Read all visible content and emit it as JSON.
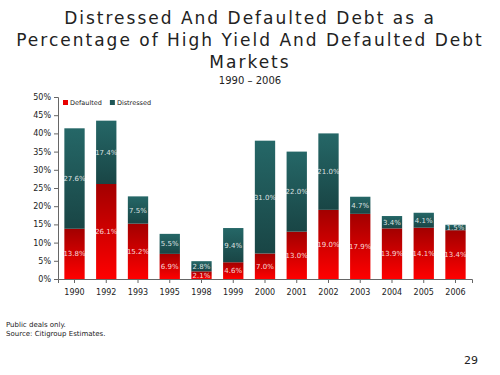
{
  "chart_data": {
    "type": "bar",
    "title": "Distressed And Defaulted Debt as a Percentage of High Yield And Defaulted Debt Markets",
    "subtitle": "1990 – 2006",
    "annotations": [
      "Public deals only.",
      "Source: Citigroup  Estimates.",
      "29"
    ],
    "categories": [
      "1990",
      "1992",
      "1993",
      "1995",
      "1998",
      "1999",
      "2000",
      "2001",
      "2002",
      "2003",
      "2004",
      "2005",
      "2006"
    ],
    "series": [
      {
        "name": "Defaulted",
        "color": "#e80000",
        "values": [
          13.8,
          26.1,
          15.2,
          6.9,
          2.1,
          4.6,
          7.0,
          13.0,
          19.0,
          17.9,
          13.9,
          14.1,
          13.4
        ],
        "value_labels": [
          "13.8%",
          "26.1%",
          "15.2%",
          "6.9%",
          "2.1%",
          "4.6%",
          "7.0%",
          "13.0%",
          "19.0%",
          "17.9%",
          "13.9%",
          "14.1%",
          "13.4%"
        ]
      },
      {
        "name": "Distressed",
        "color": "#1f5656",
        "values": [
          27.6,
          17.4,
          7.5,
          5.5,
          2.8,
          9.4,
          31.0,
          22.0,
          21.0,
          4.7,
          3.4,
          4.1,
          1.5
        ],
        "value_labels": [
          "27.6%",
          "17.4%",
          "7.5%",
          "5.5%",
          "2.8%",
          "9.4%",
          "31.0%",
          "22.0%",
          "21.0%",
          "4.7%",
          "3.4%",
          "4.1%",
          "1.5%"
        ]
      }
    ],
    "stacked": true,
    "data_labels": true,
    "legend": "top-left",
    "grid": false,
    "ylim": [
      0,
      50
    ],
    "yticks": [
      {
        "value": 0,
        "label": "0%"
      },
      {
        "value": 5,
        "label": "5%"
      },
      {
        "value": 10,
        "label": "10%"
      },
      {
        "value": 15,
        "label": "15%"
      },
      {
        "value": 20,
        "label": "20%"
      },
      {
        "value": 25,
        "label": "25%"
      },
      {
        "value": 30,
        "label": "30%"
      },
      {
        "value": 35,
        "label": "35%"
      },
      {
        "value": 40,
        "label": "40%"
      },
      {
        "value": 45,
        "label": "45%"
      },
      {
        "value": 50,
        "label": "50%"
      }
    ]
  }
}
